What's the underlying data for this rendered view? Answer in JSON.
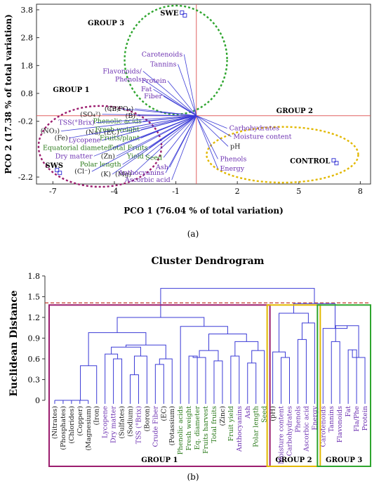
{
  "chart_data": [
    {
      "type": "scatter",
      "panel_label": "(a)",
      "xlabel": "PCO 1 (76.04 % of total variation)",
      "ylabel": "PCO 2 (17.38 % of total variation)",
      "xlim": [
        -7.8,
        8.5
      ],
      "ylim": [
        -2.45,
        4.0
      ],
      "x_ticks": [
        "-7",
        "-4",
        "-1",
        "2",
        "5",
        "8"
      ],
      "y_ticks": [
        "3.8",
        "2.8",
        "1.8",
        "0.8",
        "-0.2",
        "-2.2"
      ],
      "x_tick_values": [
        -7,
        -4,
        -1,
        2,
        5,
        8
      ],
      "y_tick_values": [
        3.8,
        2.8,
        1.8,
        0.8,
        -0.2,
        -2.2
      ],
      "origin": [
        0,
        0
      ],
      "points": [
        {
          "label": "SWE",
          "x": -0.7,
          "y": 3.7
        },
        {
          "label": "SWS",
          "x": -6.8,
          "y": -1.95
        },
        {
          "label": "CONTROL",
          "x": 6.7,
          "y": -1.6
        }
      ],
      "groups": [
        {
          "label": "GROUP 1",
          "color": "#9b1c6e",
          "cx": -4.7,
          "cy": -1.1,
          "rx": 3.0,
          "ry": 1.45,
          "lx": -7.0,
          "ly": 0.85
        },
        {
          "label": "GROUP 2",
          "color": "#e2b800",
          "cx": 4.2,
          "cy": -1.4,
          "rx": 3.7,
          "ry": 1.0,
          "lx": 3.9,
          "ly": 0.1
        },
        {
          "label": "GROUP 3",
          "color": "#2ea52e",
          "cx": -1.0,
          "cy": 2.0,
          "rx": 2.5,
          "ry": 1.95,
          "lx": -5.3,
          "ly": 3.25
        }
      ],
      "vectors": [
        {
          "label": "Carotenoids",
          "x": -0.6,
          "y": 2.2,
          "color": "#6b2fb0"
        },
        {
          "label": "Tannins",
          "x": -0.9,
          "y": 1.85,
          "color": "#6b2fb0"
        },
        {
          "label": "Flavonoids/",
          "x": -2.6,
          "y": 1.6,
          "color": "#6b2fb0"
        },
        {
          "label": "Phenols",
          "x": -2.6,
          "y": 1.3,
          "color": "#6b2fb0"
        },
        {
          "label": "Protein",
          "x": -1.4,
          "y": 1.25,
          "color": "#6b2fb0"
        },
        {
          "label": "Fat",
          "x": -2.1,
          "y": 0.95,
          "color": "#6b2fb0"
        },
        {
          "label": "Fiber",
          "x": -1.6,
          "y": 0.7,
          "color": "#6b2fb0"
        },
        {
          "label": "(Cu)",
          "x": -3.7,
          "y": 0.25,
          "color": "#1a1a1a"
        },
        {
          "label": "(P-PO₄)",
          "x": -3.0,
          "y": 0.25,
          "color": "#1a1a1a"
        },
        {
          "label": "(SO₄²)",
          "x": -4.6,
          "y": 0.05,
          "color": "#1a1a1a"
        },
        {
          "label": "(B)",
          "x": -2.9,
          "y": 0.0,
          "color": "#1a1a1a"
        },
        {
          "label": "Phenolic acids",
          "x": -2.6,
          "y": -0.2,
          "color": "#2a7a1a"
        },
        {
          "label": "TSS(°Brix)",
          "x": -4.9,
          "y": -0.25,
          "color": "#6b2fb0"
        },
        {
          "label": "(NO₃)",
          "x": -6.6,
          "y": -0.55,
          "color": "#1a1a1a"
        },
        {
          "label": "(Na)",
          "x": -4.6,
          "y": -0.6,
          "color": "#1a1a1a"
        },
        {
          "label": "(EC)",
          "x": -3.7,
          "y": -0.6,
          "color": "#1a1a1a"
        },
        {
          "label": "Fresh weight",
          "x": -2.7,
          "y": -0.5,
          "color": "#2a7a1a"
        },
        {
          "label": "(Fe)",
          "x": -6.2,
          "y": -0.8,
          "color": "#1a1a1a"
        },
        {
          "label": "Lycopene",
          "x": -4.6,
          "y": -0.88,
          "color": "#6b2fb0"
        },
        {
          "label": "Fruits/plant",
          "x": -2.7,
          "y": -0.8,
          "color": "#2a7a1a"
        },
        {
          "label": "Equatorial diameter",
          "x": -4.1,
          "y": -1.15,
          "color": "#2a7a1a"
        },
        {
          "label": "Total Fruits",
          "x": -2.3,
          "y": -1.15,
          "color": "#2a7a1a"
        },
        {
          "label": "Dry matter",
          "x": -5.0,
          "y": -1.45,
          "color": "#6b2fb0"
        },
        {
          "label": "(Zn)",
          "x": -3.9,
          "y": -1.45,
          "color": "#1a1a1a"
        },
        {
          "label": "Yield",
          "x": -2.5,
          "y": -1.45,
          "color": "#2a7a1a"
        },
        {
          "label": "Seed",
          "x": -1.6,
          "y": -1.5,
          "color": "#2a7a1a"
        },
        {
          "label": "Polar length",
          "x": -3.6,
          "y": -1.75,
          "color": "#2a7a1a"
        },
        {
          "label": "Ash",
          "x": -1.3,
          "y": -1.85,
          "color": "#6b2fb0"
        },
        {
          "label": "(Cl⁻)",
          "x": -5.1,
          "y": -2.0,
          "color": "#1a1a1a"
        },
        {
          "label": "(K)",
          "x": -4.1,
          "y": -2.1,
          "color": "#1a1a1a"
        },
        {
          "label": "(Mg)",
          "x": -3.1,
          "y": -2.1,
          "color": "#1a1a1a"
        },
        {
          "label": "Anthocyanins",
          "x": -1.5,
          "y": -2.05,
          "color": "#6b2fb0"
        },
        {
          "label": "Ascorbic acid",
          "x": -1.2,
          "y": -2.3,
          "color": "#6b2fb0"
        },
        {
          "label": "Carbohydrates",
          "x": 1.5,
          "y": -0.45,
          "color": "#6b2fb0"
        },
        {
          "label": "Moisture content",
          "x": 1.7,
          "y": -0.75,
          "color": "#6b2fb0"
        },
        {
          "label": "pH",
          "x": 1.55,
          "y": -1.1,
          "color": "#1a1a1a"
        },
        {
          "label": "Phenols",
          "x": 1.05,
          "y": -1.55,
          "color": "#6b2fb0"
        },
        {
          "label": "Energy",
          "x": 1.05,
          "y": -1.9,
          "color": "#6b2fb0"
        }
      ]
    },
    {
      "type": "dendrogram",
      "panel_label": "(b)",
      "title": "Cluster Dendrogram",
      "ylabel": "Euclidean Distance",
      "ylim": [
        0,
        1.85
      ],
      "y_ticks": [
        "0",
        "0.3",
        "0.6",
        "0.9",
        "1.2",
        "1.5",
        "1.8"
      ],
      "y_tick_values": [
        0,
        0.3,
        0.6,
        0.9,
        1.2,
        1.5,
        1.8
      ],
      "cut_height": 1.41,
      "leaves": [
        {
          "label": "(Nitrates)",
          "color": "#1a1a1a"
        },
        {
          "label": "(Phosphates)",
          "color": "#1a1a1a"
        },
        {
          "label": "(Chlorides)",
          "color": "#1a1a1a"
        },
        {
          "label": "(Copper)",
          "color": "#1a1a1a"
        },
        {
          "label": "(Magnesium)",
          "color": "#1a1a1a"
        },
        {
          "label": "(Iron)",
          "color": "#1a1a1a"
        },
        {
          "label": "Lycopene",
          "color": "#6b2fb0"
        },
        {
          "label": "Dry matter",
          "color": "#6b2fb0"
        },
        {
          "label": "(Sulfates)",
          "color": "#1a1a1a"
        },
        {
          "label": "(Sodium)",
          "color": "#1a1a1a"
        },
        {
          "label": "TSS (°Brix)",
          "color": "#6b2fb0"
        },
        {
          "label": "(Boron)",
          "color": "#1a1a1a"
        },
        {
          "label": "Crude Fiber",
          "color": "#6b2fb0"
        },
        {
          "label": "(EC)",
          "color": "#1a1a1a"
        },
        {
          "label": "(Potassium)",
          "color": "#1a1a1a"
        },
        {
          "label": "Phenolic acids",
          "color": "#2a7a1a"
        },
        {
          "label": "Fresh weight",
          "color": "#2a7a1a"
        },
        {
          "label": "Eq. diameter",
          "color": "#2a7a1a"
        },
        {
          "label": "Fruits harvest",
          "color": "#2a7a1a"
        },
        {
          "label": "Total fruits",
          "color": "#2a7a1a"
        },
        {
          "label": "(Zinc)",
          "color": "#1a1a1a"
        },
        {
          "label": "Fruit yield",
          "color": "#2a7a1a"
        },
        {
          "label": "Anthocyanins",
          "color": "#6b2fb0"
        },
        {
          "label": "Ash",
          "color": "#6b2fb0"
        },
        {
          "label": "Polar length",
          "color": "#2a7a1a"
        },
        {
          "label": "Seed",
          "color": "#2a7a1a"
        },
        {
          "label": "(pH)",
          "color": "#1a1a1a"
        },
        {
          "label": "Moisture content",
          "color": "#6b2fb0"
        },
        {
          "label": "Carbohydrates",
          "color": "#6b2fb0"
        },
        {
          "label": "Phenols",
          "color": "#6b2fb0"
        },
        {
          "label": "Ascorbic acid",
          "color": "#6b2fb0"
        },
        {
          "label": "Energy",
          "color": "#6b2fb0"
        },
        {
          "label": "Carotenoids",
          "color": "#6b2fb0"
        },
        {
          "label": "Tannins",
          "color": "#6b2fb0"
        },
        {
          "label": "Flavonoids",
          "color": "#6b2fb0"
        },
        {
          "label": "Fat",
          "color": "#6b2fb0"
        },
        {
          "label": "Fla/Phe",
          "color": "#6b2fb0"
        },
        {
          "label": "Protein",
          "color": "#6b2fb0"
        }
      ],
      "merges": [
        [
          0,
          1,
          0.0
        ],
        [
          38,
          2,
          0.0
        ],
        [
          39,
          3,
          0.0
        ],
        [
          40,
          4,
          0.0
        ],
        [
          5,
          41,
          0.5
        ],
        [
          7,
          8,
          0.6
        ],
        [
          6,
          43,
          0.67
        ],
        [
          9,
          10,
          0.37
        ],
        [
          45,
          11,
          0.64
        ],
        [
          44,
          46,
          0.77
        ],
        [
          12,
          13,
          0.52
        ],
        [
          48,
          14,
          0.6
        ],
        [
          47,
          49,
          0.8
        ],
        [
          42,
          50,
          0.98
        ],
        [
          16,
          17,
          0.64
        ],
        [
          52,
          18,
          0.62
        ],
        [
          19,
          20,
          0.57
        ],
        [
          53,
          54,
          0.72
        ],
        [
          22,
          21,
          0.64
        ],
        [
          23,
          24,
          0.54
        ],
        [
          57,
          25,
          0.72
        ],
        [
          56,
          58,
          0.85
        ],
        [
          55,
          59,
          0.96
        ],
        [
          15,
          60,
          1.07
        ],
        [
          51,
          61,
          1.2
        ],
        [
          27,
          28,
          0.62
        ],
        [
          26,
          63,
          0.7
        ],
        [
          29,
          30,
          0.88
        ],
        [
          65,
          31,
          1.12
        ],
        [
          64,
          66,
          1.26
        ],
        [
          33,
          34,
          0.85
        ],
        [
          35,
          36,
          0.73
        ],
        [
          69,
          37,
          0.62
        ],
        [
          68,
          70,
          1.08
        ],
        [
          32,
          71,
          1.04
        ],
        [
          67,
          72,
          1.4
        ],
        [
          62,
          73,
          1.62
        ]
      ],
      "groups": [
        {
          "label": "GROUP 1",
          "color": "#9b1c6e",
          "from": 0,
          "to": 25
        },
        {
          "label": "GROUP 2",
          "color": "#e2b800",
          "from": 26,
          "to": 31
        },
        {
          "label": "GROUP 3",
          "color": "#2ea52e",
          "from": 32,
          "to": 37
        }
      ]
    }
  ]
}
